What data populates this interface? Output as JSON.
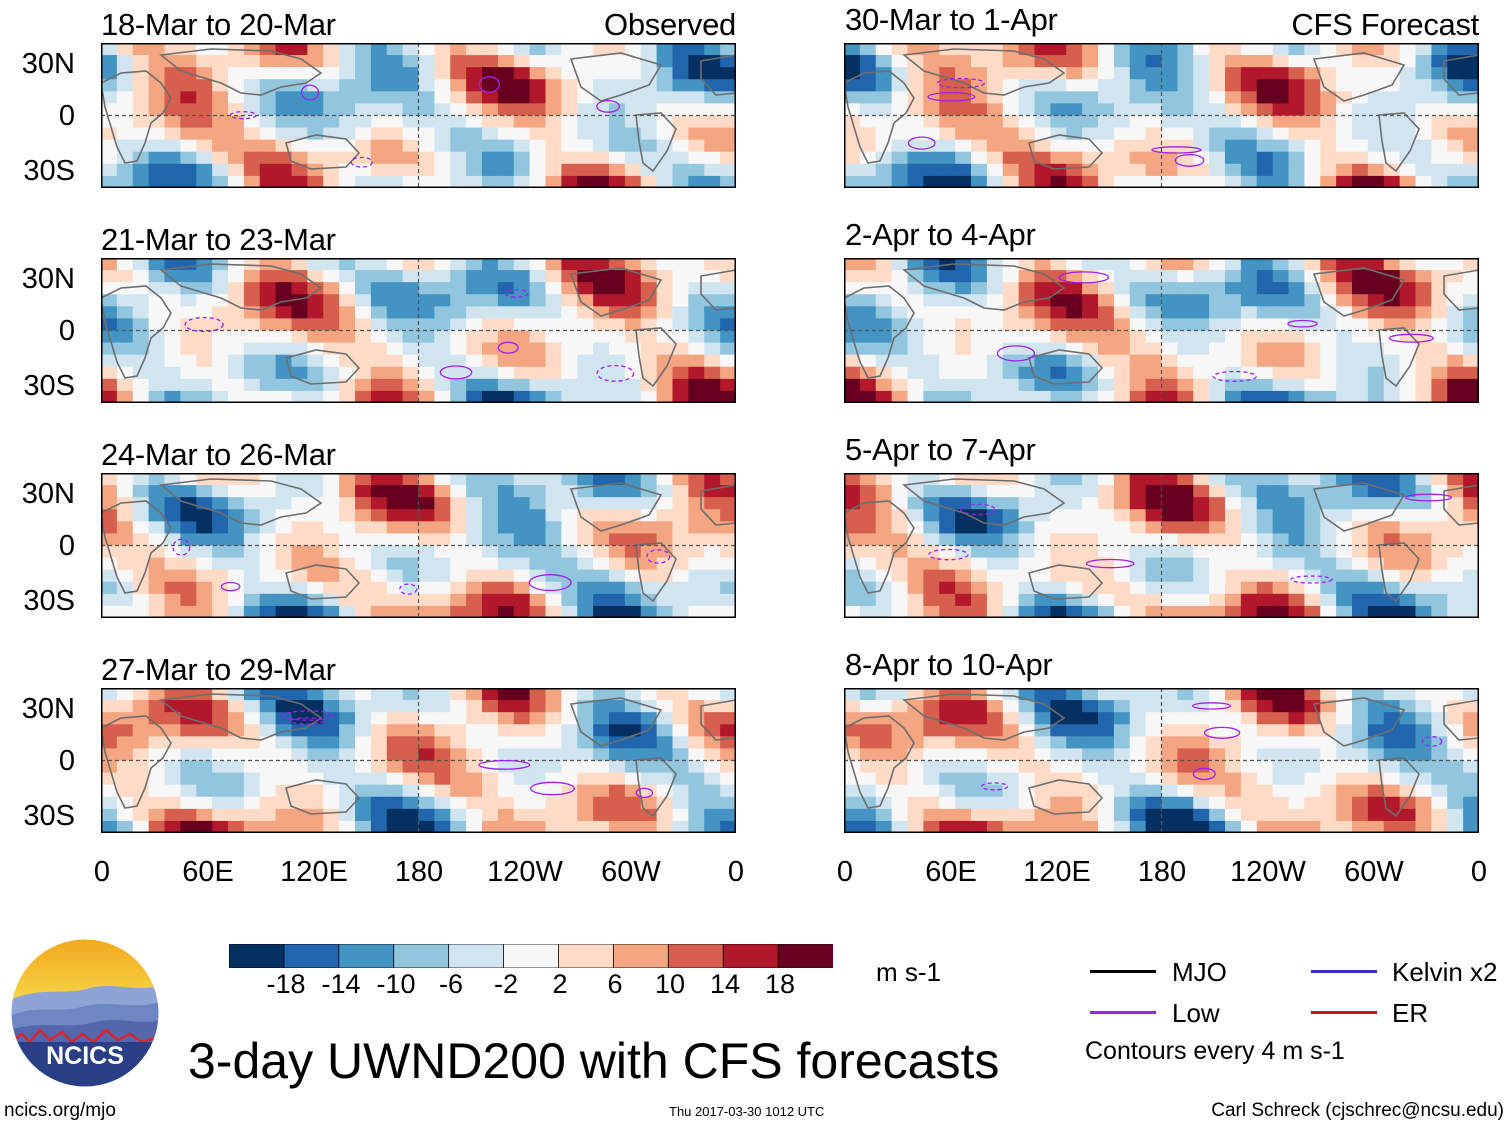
{
  "main_title": "3-day UWND200 with CFS forecasts",
  "observed_label": "Observed",
  "forecast_label": "CFS Forecast",
  "observed_panels": [
    {
      "title": "18-Mar to 20-Mar"
    },
    {
      "title": "21-Mar to 23-Mar"
    },
    {
      "title": "24-Mar to 26-Mar"
    },
    {
      "title": "27-Mar to 29-Mar"
    }
  ],
  "forecast_panels": [
    {
      "title": "30-Mar to 1-Apr"
    },
    {
      "title": "2-Apr to 4-Apr"
    },
    {
      "title": "5-Apr to 7-Apr"
    },
    {
      "title": "8-Apr to 10-Apr"
    }
  ],
  "lat_labels": [
    "30N",
    "0",
    "30S"
  ],
  "lon_labels": [
    "0",
    "60E",
    "120E",
    "180",
    "120W",
    "60W",
    "0"
  ],
  "colorbar": {
    "labels": [
      "-18",
      "-14",
      "-10",
      "-6",
      "-2",
      "2",
      "6",
      "10",
      "14",
      "18"
    ],
    "colors": [
      "#053061",
      "#2166ac",
      "#4393c3",
      "#92c5de",
      "#d1e5f0",
      "#f7f7f7",
      "#fddbc7",
      "#f4a582",
      "#d6604d",
      "#b2182b",
      "#67001f"
    ],
    "units": "m s-1"
  },
  "legend": {
    "items": [
      {
        "label": "MJO",
        "color": "#000000"
      },
      {
        "label": "Kelvin x2",
        "color": "#3b2fc9"
      },
      {
        "label": "Low",
        "color": "#a020f0"
      },
      {
        "label": "ER",
        "color": "#d01010"
      }
    ],
    "contour_note": "Contours every 4 m s-1"
  },
  "logo_text": "NCICS",
  "footer": {
    "left": "ncics.org/mjo",
    "center": "Thu 2017-03-30 1012 UTC",
    "right": "Carl Schreck (cjschrec@ncsu.edu)"
  },
  "colors": {
    "map_border": "#000000",
    "coastline": "#6e6e6e",
    "dash": "#555555",
    "anomaly_contour": "#a020f0"
  }
}
